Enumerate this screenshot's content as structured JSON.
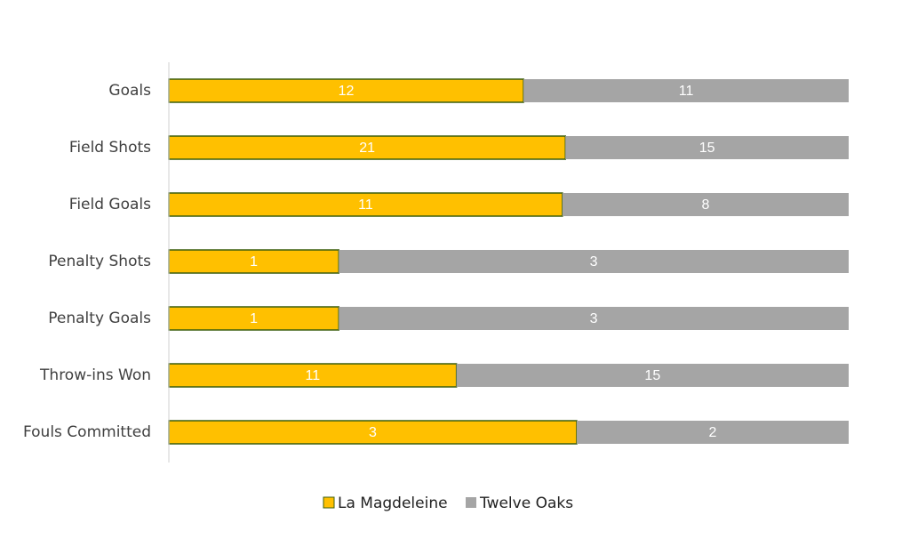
{
  "chart_data": {
    "type": "bar",
    "orientation": "horizontal",
    "stacked": "percent",
    "categories": [
      "Goals",
      "Field Shots",
      "Field Goals",
      "Penalty Shots",
      "Penalty Goals",
      "Throw-ins Won",
      "Fouls Committed"
    ],
    "series": [
      {
        "name": "La Magdeleine",
        "color": "#FFC000",
        "values": [
          12,
          21,
          11,
          1,
          1,
          11,
          3
        ]
      },
      {
        "name": "Twelve Oaks",
        "color": "#A5A5A5",
        "values": [
          11,
          15,
          8,
          3,
          3,
          15,
          2
        ]
      }
    ],
    "legend": "bottom"
  }
}
